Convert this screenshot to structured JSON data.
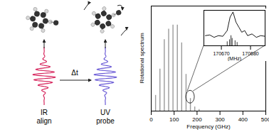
{
  "chart_data": [
    {
      "type": "bar",
      "x_label": "Frequency (GHz)",
      "y_label": "Rotational spectrum",
      "x": [
        19,
        38,
        57,
        76,
        95,
        114,
        133,
        152,
        171,
        190,
        209
      ],
      "values": [
        0.15,
        0.4,
        0.68,
        0.78,
        0.82,
        0.82,
        0.65,
        0.35,
        0.12,
        0.04,
        0.015
      ],
      "color": "#9a9a9a",
      "xlim": [
        0,
        500
      ],
      "xticks": [
        0,
        100,
        200,
        300,
        400,
        500
      ],
      "ylim": [
        0,
        1
      ],
      "tick_labels": "x"
    },
    {
      "type": "line",
      "x_label": "(MHz)",
      "xlim": [
        170664,
        170685
      ],
      "xticks": [
        170670,
        170680
      ],
      "ylim": [
        0,
        1.05
      ],
      "tick_labels": "x",
      "series": [
        {
          "type": "line",
          "color": "#000000",
          "x": [
            170664.5,
            170666,
            170667.5,
            170669,
            170670.5,
            170672,
            170673,
            170674,
            170675,
            170676,
            170677,
            170678,
            170679,
            170680.5,
            170682,
            170683.5,
            170685
          ],
          "values": [
            0.3,
            0.32,
            0.25,
            0.3,
            0.28,
            0.45,
            0.85,
            1.0,
            0.7,
            0.55,
            0.4,
            0.45,
            0.3,
            0.35,
            0.25,
            0.3,
            0.28
          ]
        },
        {
          "type": "bar",
          "color": "#333333",
          "x": [
            170672,
            170672.8,
            170673.3,
            170673.7,
            170674.7,
            170675.4
          ],
          "values": [
            0.12,
            0.18,
            0.3,
            0.22,
            0.15,
            0.1
          ]
        }
      ]
    }
  ],
  "diagram": {
    "pulses": [
      {
        "label": [
          "IR",
          "align"
        ],
        "color": "#d6245c"
      },
      {
        "label": [
          "UV",
          "probe"
        ],
        "color": "#6b5bd6"
      }
    ],
    "delay_label": "Δt"
  }
}
